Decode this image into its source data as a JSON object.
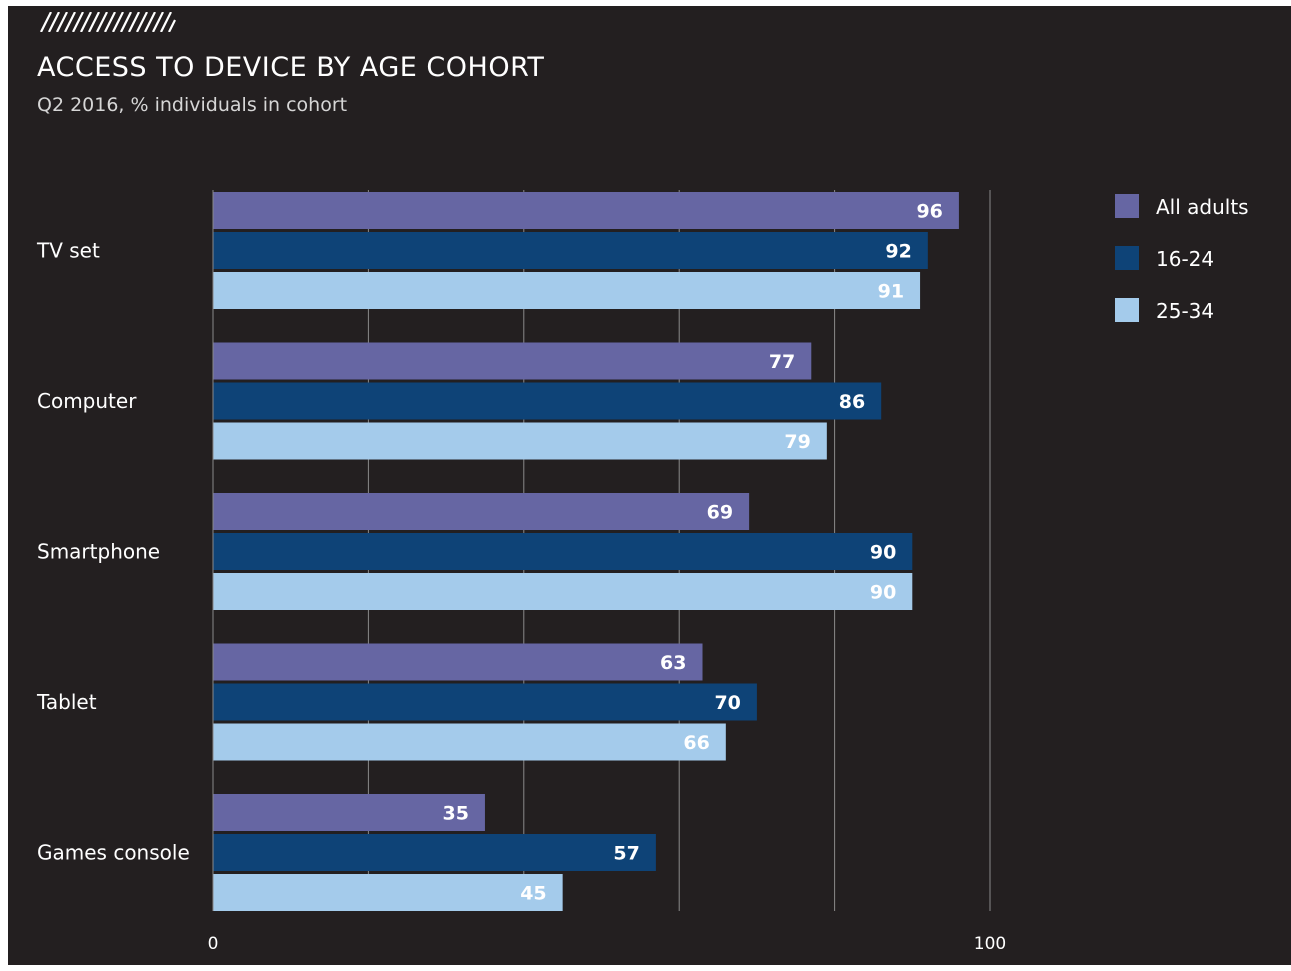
{
  "chart_data": {
    "type": "bar",
    "orientation": "horizontal",
    "title": "ACCESS TO DEVICE BY AGE COHORT",
    "subtitle": "Q2 2016, % individuals in cohort",
    "categories": [
      "TV set",
      "Computer",
      "Smartphone",
      "Tablet",
      "Games console"
    ],
    "series": [
      {
        "name": "All adults",
        "color": "#6666a3",
        "values": [
          96,
          77,
          69,
          63,
          35
        ]
      },
      {
        "name": "16-24",
        "color": "#0e4377",
        "values": [
          92,
          86,
          90,
          70,
          57
        ]
      },
      {
        "name": "25-34",
        "color": "#a4cbeb",
        "values": [
          91,
          79,
          90,
          66,
          45
        ]
      }
    ],
    "xlim": [
      0,
      100
    ],
    "xticks": [
      "0",
      "100"
    ],
    "grid": true,
    "legend": "top-right"
  },
  "colors": {
    "background": "#231f20",
    "grid": "#8a8a8a"
  }
}
